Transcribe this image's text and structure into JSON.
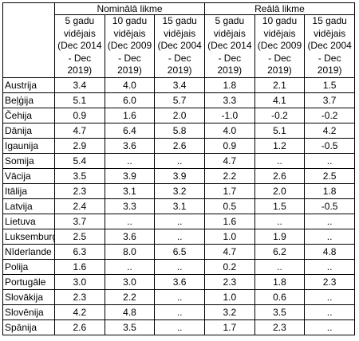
{
  "table": {
    "group_headers": [
      "Nominālā likme",
      "Reālā likme"
    ],
    "sub_headers": [
      "5 gadu vidējais (Dec 2014 - Dec 2019)",
      "10 gadu vidējais (Dec 2009 - Dec 2019)",
      "15 gadu vidējais (Dec 2004 - Dec 2019)",
      "5 gadu vidējais (Dec 2014 - Dec 2019)",
      "10 gadu vidējais (Dec 2009 - Dec 2019)",
      "15 gadu vidējais (Dec 2004 - Dec 2019)"
    ],
    "rows": [
      {
        "country": "Austrija",
        "values": [
          "3.4",
          "4.0",
          "3.4",
          "1.8",
          "2.1",
          "1.5"
        ]
      },
      {
        "country": "Beļģija",
        "values": [
          "5.1",
          "6.0",
          "5.7",
          "3.3",
          "4.1",
          "3.7"
        ]
      },
      {
        "country": "Čehija",
        "values": [
          "0.9",
          "1.6",
          "2.0",
          "-1.0",
          "-0.2",
          "-0.2"
        ]
      },
      {
        "country": "Dānija",
        "values": [
          "4.7",
          "6.4",
          "5.8",
          "4.0",
          "5.1",
          "4.2"
        ]
      },
      {
        "country": "Igaunija",
        "values": [
          "2.9",
          "3.6",
          "2.6",
          "0.9",
          "1.2",
          "-0.5"
        ]
      },
      {
        "country": "Somija",
        "values": [
          "5.4",
          "..",
          "..",
          "4.7",
          "..",
          ".."
        ]
      },
      {
        "country": "Vācija",
        "values": [
          "3.5",
          "3.9",
          "3.9",
          "2.2",
          "2.6",
          "2.5"
        ]
      },
      {
        "country": "Itālija",
        "values": [
          "2.3",
          "3.1",
          "3.2",
          "1.7",
          "2.0",
          "1.8"
        ]
      },
      {
        "country": "Latvija",
        "values": [
          "2.4",
          "3.3",
          "3.1",
          "0.5",
          "1.5",
          "-0.5"
        ]
      },
      {
        "country": "Lietuva",
        "values": [
          "3.7",
          "..",
          "..",
          "1.6",
          "..",
          ".."
        ]
      },
      {
        "country": "Luksemburg",
        "values": [
          "2.5",
          "3.6",
          "..",
          "1.0",
          "1.9",
          ".."
        ]
      },
      {
        "country": "Nīderlande",
        "values": [
          "6.3",
          "8.0",
          "6.5",
          "4.7",
          "6.2",
          "4.8"
        ]
      },
      {
        "country": "Polija",
        "values": [
          "1.6",
          "..",
          "..",
          "0.2",
          "..",
          ".."
        ]
      },
      {
        "country": "Portugāle",
        "values": [
          "3.0",
          "3.0",
          "3.6",
          "2.3",
          "1.8",
          "2.3"
        ]
      },
      {
        "country": "Slovākija",
        "values": [
          "2.3",
          "2.2",
          "..",
          "1.0",
          "0.6",
          ".."
        ]
      },
      {
        "country": "Slovēnija",
        "values": [
          "4.2",
          "4.8",
          "..",
          "3.2",
          "3.5",
          ".."
        ]
      },
      {
        "country": "Spānija",
        "values": [
          "2.6",
          "3.5",
          "..",
          "1.7",
          "2.3",
          ".."
        ]
      }
    ]
  }
}
